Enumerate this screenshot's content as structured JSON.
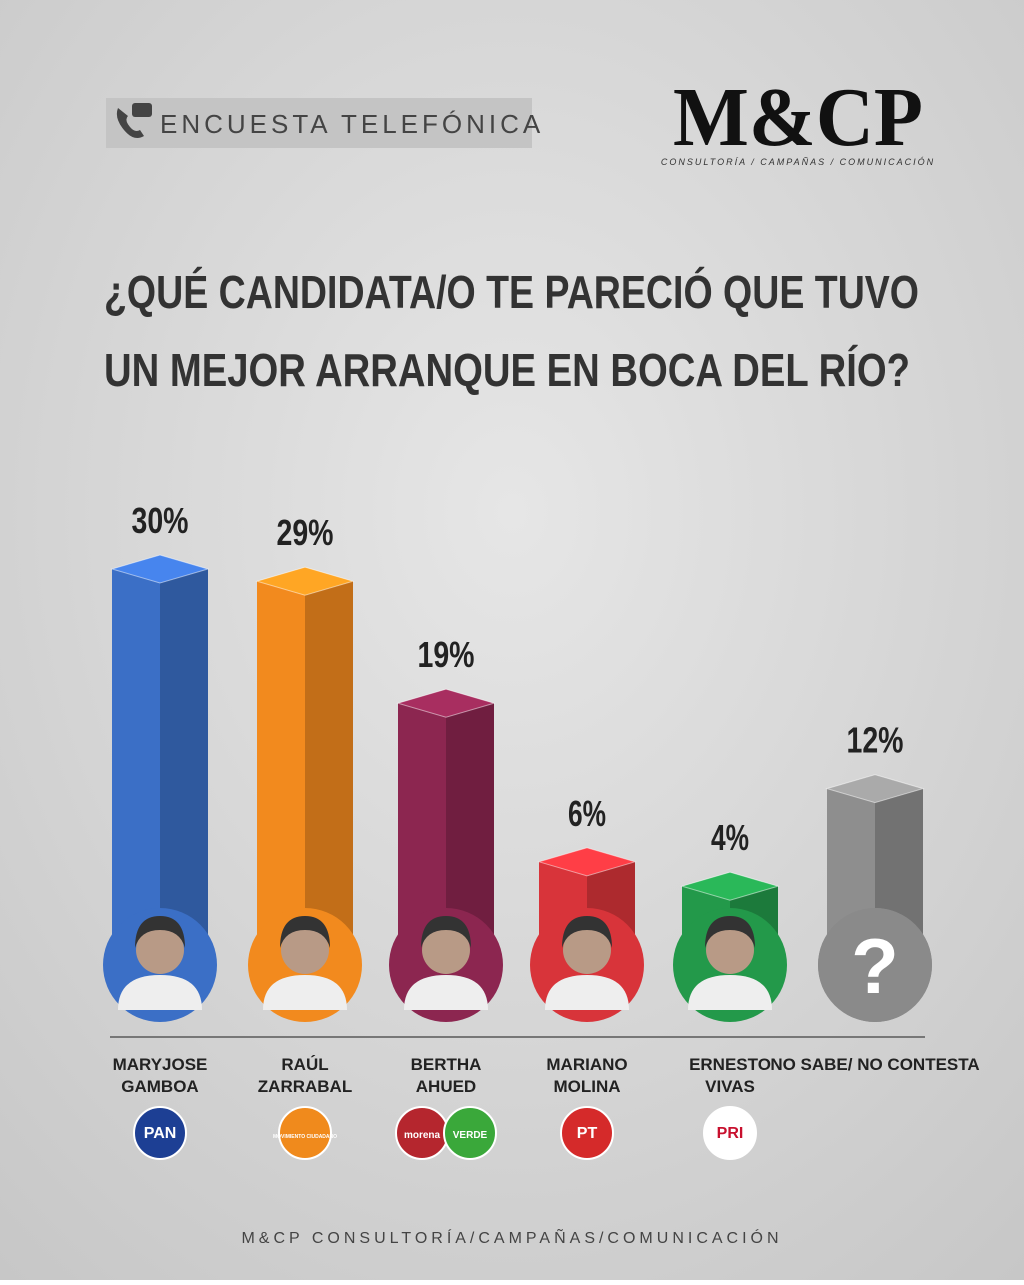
{
  "header": {
    "badge": "ENCUESTA TELEFÓNICA",
    "logo": "M&CP",
    "logo_tagline": "CONSULTORÍA / CAMPAÑAS / COMUNICACIÓN"
  },
  "chart_data": {
    "type": "bar",
    "title": [
      "¿QUÉ CANDIDATA/O TE PARECIÓ QUE TUVO",
      "UN MEJOR ARRANQUE EN BOCA DEL RÍO?"
    ],
    "categories": [
      "MARYJOSE\nGAMBOA",
      "RAÚL\nZARRABAL",
      "BERTHA\nAHUED",
      "MARIANO\nMOLINA",
      "ERNESTO\nVIVAS",
      "NO SABE/ NO CONTESTA"
    ],
    "values": [
      30,
      29,
      19,
      6,
      4,
      12
    ],
    "value_labels": [
      "30%",
      "29%",
      "19%",
      "6%",
      "4%",
      "12%"
    ],
    "colors": [
      "#3b6fc6",
      "#f28a1e",
      "#8c2650",
      "#d8343a",
      "#23994a",
      "#8e8e8e"
    ],
    "unknown_mark": "?",
    "logos": [
      [
        {
          "label": "PAN",
          "color": "#1d3f94"
        }
      ],
      [
        {
          "label": "MOVIMIENTO CIUDADANO",
          "color": "#f08a1c"
        }
      ],
      [
        {
          "label": "morena",
          "color": "#b5262e"
        },
        {
          "label": "VERDE",
          "color": "#3aa83a"
        }
      ],
      [
        {
          "label": "PT",
          "color": "#d52a2a"
        }
      ],
      [
        {
          "label": "PRI",
          "color": "#ffffff"
        }
      ],
      []
    ]
  },
  "footer": "M&CP CONSULTORÍA/CAMPAÑAS/COMUNICACIÓN"
}
